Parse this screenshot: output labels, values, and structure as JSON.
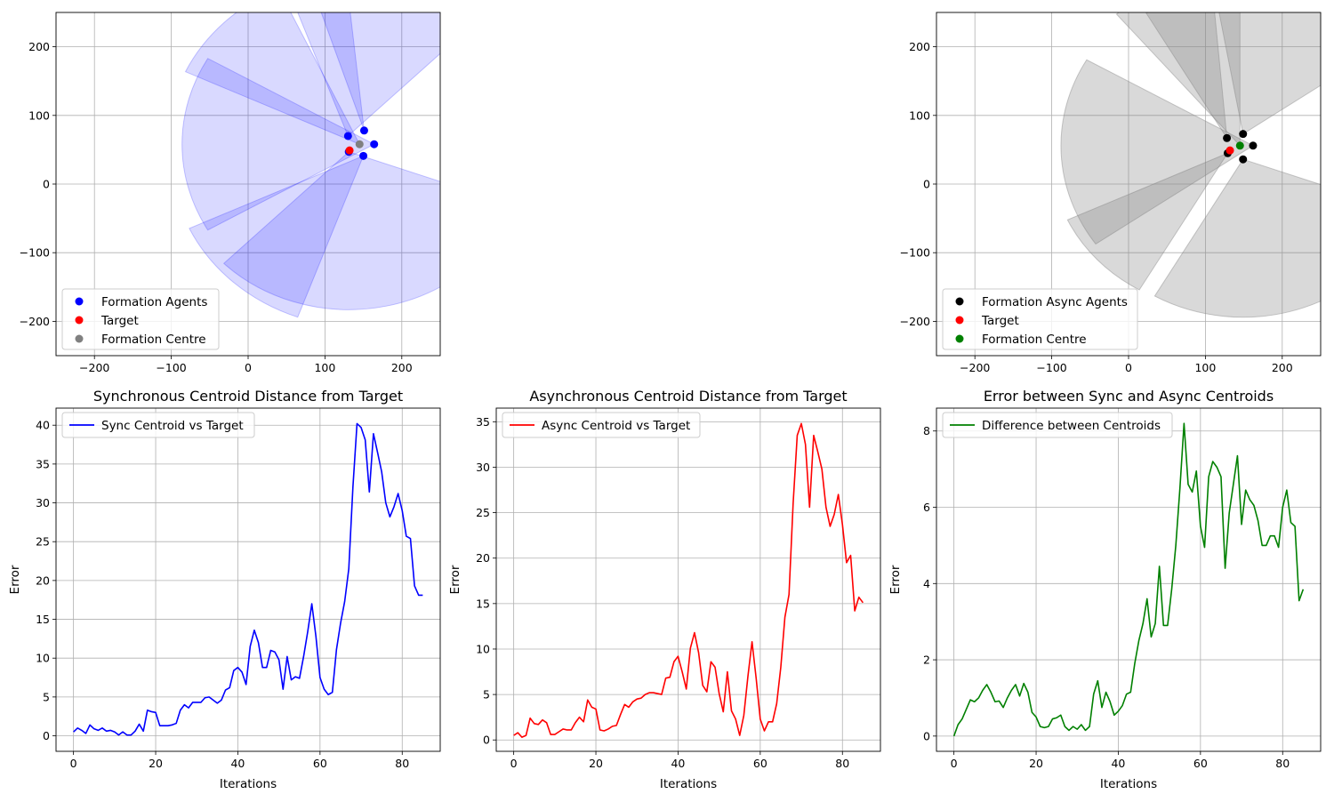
{
  "chart_data": [
    {
      "type": "scatter",
      "title": "",
      "xlim": [
        -250,
        250
      ],
      "ylim": [
        -250,
        250
      ],
      "xticks": [
        -200,
        -100,
        0,
        100,
        200
      ],
      "yticks": [
        -200,
        -100,
        0,
        100,
        200
      ],
      "xtick_labels": [
        "−200",
        "−100",
        "0",
        "100",
        "200"
      ],
      "ytick_labels": [
        "−200",
        "−100",
        "0",
        "100",
        "200"
      ],
      "grid": true,
      "legend": "lower-left",
      "sector_color": "#0000ff",
      "sector_alpha": 0.15,
      "sectors": [
        {
          "cx": 130,
          "cy": 70,
          "r": 230,
          "a1": 45,
          "a2": 110
        },
        {
          "cx": 151,
          "cy": 78,
          "r": 240,
          "a1": 96,
          "a2": 108
        },
        {
          "cx": 164,
          "cy": 58,
          "r": 250,
          "a1": 150,
          "a2": 210
        },
        {
          "cx": 150,
          "cy": 41,
          "r": 250,
          "a1": 205,
          "a2": 250
        },
        {
          "cx": 131,
          "cy": 47,
          "r": 230,
          "a1": 225,
          "a2": 340
        },
        {
          "cx": 145,
          "cy": 58,
          "r": 250,
          "a1": 115,
          "a2": 155
        }
      ],
      "series": [
        {
          "name": "Formation Agents",
          "color": "#0000ff",
          "points": [
            [
              130,
              70
            ],
            [
              151,
              78
            ],
            [
              164,
              58
            ],
            [
              150,
              41
            ],
            [
              131,
              47
            ]
          ]
        },
        {
          "name": "Target",
          "color": "#ff0000",
          "points": [
            [
              132,
              49
            ]
          ]
        },
        {
          "name": "Formation Centre",
          "color": "#808080",
          "points": [
            [
              145,
              58
            ]
          ]
        }
      ]
    },
    {
      "type": "scatter",
      "title": "",
      "xlim": [
        -250,
        250
      ],
      "ylim": [
        -250,
        250
      ],
      "xticks": [
        -200,
        -100,
        0,
        100,
        200
      ],
      "yticks": [
        -200,
        -100,
        0,
        100,
        200
      ],
      "xtick_labels": [
        "−200",
        "−100",
        "0",
        "100",
        "200"
      ],
      "ytick_labels": [
        "−200",
        "−100",
        "0",
        "100",
        "200"
      ],
      "grid": true,
      "legend": "lower-left",
      "sector_color": "#808080",
      "sector_alpha": 0.3,
      "sectors": [
        {
          "cx": 149,
          "cy": 73,
          "r": 250,
          "a1": 35,
          "a2": 100
        },
        {
          "cx": 128,
          "cy": 67,
          "r": 210,
          "a1": 95,
          "a2": 120
        },
        {
          "cx": 162,
          "cy": 56,
          "r": 250,
          "a1": 150,
          "a2": 215
        },
        {
          "cx": 149,
          "cy": 36,
          "r": 230,
          "a1": 240,
          "a2": 340
        },
        {
          "cx": 129,
          "cy": 45,
          "r": 230,
          "a1": 205,
          "a2": 240
        },
        {
          "cx": 145,
          "cy": 56,
          "r": 250,
          "a1": 90,
          "a2": 130
        }
      ],
      "series": [
        {
          "name": "Formation Async Agents",
          "color": "#000000",
          "points": [
            [
              149,
              73
            ],
            [
              128,
              67
            ],
            [
              162,
              56
            ],
            [
              149,
              36
            ],
            [
              129,
              45
            ]
          ]
        },
        {
          "name": "Target",
          "color": "#ff0000",
          "points": [
            [
              132,
              49
            ]
          ]
        },
        {
          "name": "Formation Centre",
          "color": "#008000",
          "points": [
            [
              145,
              56
            ]
          ]
        }
      ]
    },
    {
      "type": "line",
      "title": "Synchronous Centroid Distance from Target",
      "xlabel": "Iterations",
      "ylabel": "Error",
      "xlim": [
        -4.25,
        89.25
      ],
      "ylim": [
        -2.0,
        42.2
      ],
      "xticks": [
        0,
        20,
        40,
        60,
        80
      ],
      "yticks": [
        0,
        5,
        10,
        15,
        20,
        25,
        30,
        35,
        40
      ],
      "grid": true,
      "legend": "upper-left",
      "series": [
        {
          "name": "Sync Centroid vs Target",
          "color": "#0000ff",
          "values": [
            0.5,
            1.0,
            0.7,
            0.3,
            1.4,
            0.9,
            0.7,
            1.0,
            0.6,
            0.7,
            0.5,
            0.1,
            0.5,
            0.1,
            0.1,
            0.6,
            1.5,
            0.6,
            3.3,
            3.1,
            3.0,
            1.3,
            1.3,
            1.3,
            1.4,
            1.6,
            3.3,
            4.0,
            3.6,
            4.3,
            4.3,
            4.3,
            4.9,
            5.0,
            4.6,
            4.2,
            4.6,
            5.9,
            6.2,
            8.4,
            8.8,
            8.2,
            6.6,
            11.5,
            13.6,
            12.0,
            8.8,
            8.8,
            11.0,
            10.8,
            9.8,
            6.0,
            10.2,
            7.2,
            7.6,
            7.4,
            10.2,
            13.4,
            17.0,
            12.8,
            7.5,
            6.0,
            5.3,
            5.6,
            11.1,
            14.5,
            17.3,
            21.5,
            32.0,
            40.2,
            39.7,
            38.1,
            31.4,
            38.9,
            36.5,
            34.0,
            30.0,
            28.2,
            29.5,
            31.2,
            29.0,
            25.7,
            25.4,
            19.3,
            18.1,
            18.1
          ]
        }
      ]
    },
    {
      "type": "line",
      "title": "Asynchronous Centroid Distance from Target",
      "xlabel": "Iterations",
      "ylabel": "Error",
      "xlim": [
        -4.25,
        89.25
      ],
      "ylim": [
        -1.25,
        36.5
      ],
      "xticks": [
        0,
        20,
        40,
        60,
        80
      ],
      "yticks": [
        0,
        5,
        10,
        15,
        20,
        25,
        30,
        35
      ],
      "grid": true,
      "legend": "upper-left",
      "series": [
        {
          "name": "Async Centroid vs Target",
          "color": "#ff0000",
          "values": [
            0.5,
            0.8,
            0.3,
            0.5,
            2.4,
            1.8,
            1.7,
            2.2,
            1.9,
            0.6,
            0.6,
            0.9,
            1.2,
            1.1,
            1.1,
            1.9,
            2.5,
            2.0,
            4.4,
            3.6,
            3.4,
            1.1,
            1.0,
            1.2,
            1.5,
            1.6,
            2.8,
            3.9,
            3.6,
            4.2,
            4.5,
            4.6,
            5.0,
            5.2,
            5.2,
            5.1,
            5.0,
            6.8,
            6.9,
            8.6,
            9.2,
            7.5,
            5.6,
            10.1,
            11.8,
            9.6,
            6.0,
            5.3,
            8.6,
            8.0,
            5.1,
            3.1,
            7.5,
            3.2,
            2.3,
            0.5,
            2.7,
            7.0,
            10.8,
            6.8,
            2.3,
            1.0,
            2.0,
            2.0,
            4.0,
            8.0,
            13.5,
            16.0,
            26.0,
            33.5,
            34.8,
            32.5,
            25.6,
            33.5,
            31.7,
            29.8,
            25.6,
            23.5,
            24.8,
            27.0,
            23.7,
            19.5,
            20.3,
            14.2,
            15.7,
            15.1
          ]
        }
      ]
    },
    {
      "type": "line",
      "title": "Error between Sync and Async Centroids",
      "xlabel": "Iterations",
      "ylabel": "Error",
      "xlim": [
        -4.25,
        89.25
      ],
      "ylim": [
        -0.4,
        8.6
      ],
      "xticks": [
        0,
        20,
        40,
        60,
        80
      ],
      "yticks": [
        0,
        2,
        4,
        6,
        8
      ],
      "grid": true,
      "legend": "upper-left",
      "series": [
        {
          "name": "Difference between Centroids",
          "color": "#008000",
          "values": [
            0.0,
            0.3,
            0.45,
            0.7,
            0.95,
            0.9,
            1.0,
            1.2,
            1.35,
            1.15,
            0.9,
            0.92,
            0.75,
            1.0,
            1.2,
            1.35,
            1.05,
            1.38,
            1.15,
            0.62,
            0.5,
            0.25,
            0.22,
            0.25,
            0.45,
            0.48,
            0.55,
            0.25,
            0.15,
            0.25,
            0.18,
            0.3,
            0.15,
            0.25,
            1.1,
            1.45,
            0.75,
            1.15,
            0.9,
            0.55,
            0.65,
            0.8,
            1.1,
            1.15,
            1.9,
            2.5,
            2.95,
            3.6,
            2.6,
            2.95,
            4.45,
            2.9,
            2.9,
            3.85,
            5.0,
            6.5,
            8.2,
            6.6,
            6.4,
            6.95,
            5.5,
            4.95,
            6.8,
            7.2,
            7.05,
            6.8,
            4.4,
            5.85,
            6.6,
            7.35,
            5.55,
            6.45,
            6.2,
            6.05,
            5.65,
            5.0,
            5.0,
            5.25,
            5.25,
            4.95,
            6.0,
            6.45,
            5.6,
            5.5,
            3.55,
            3.85
          ]
        }
      ]
    }
  ]
}
